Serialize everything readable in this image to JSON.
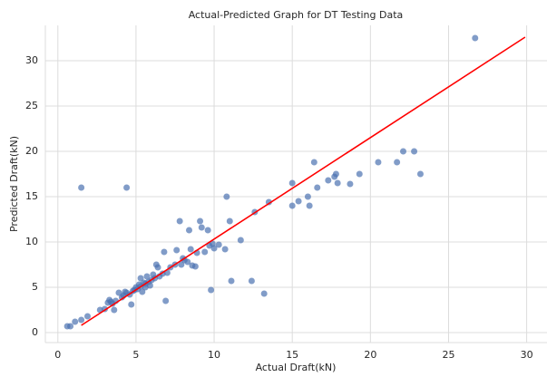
{
  "chart_data": {
    "type": "scatter",
    "title": "Actual-Predicted Graph for DT Testing Data",
    "xlabel": "Actual Draft(kN)",
    "ylabel": "Predicted Draft(kN)",
    "xlim": [
      -0.8,
      31.3
    ],
    "ylim": [
      -1.1,
      33.9
    ],
    "xticks": [
      0,
      5,
      10,
      15,
      20,
      25,
      30
    ],
    "yticks": [
      0,
      5,
      10,
      15,
      20,
      25,
      30
    ],
    "grid": true,
    "series": [
      {
        "color": "#4c72b0",
        "x": [
          0.6,
          0.8,
          1.1,
          1.5,
          1.9,
          1.5,
          4.4,
          2.7,
          3.0,
          3.2,
          3.3,
          3.5,
          3.6,
          3.7,
          3.9,
          4.1,
          4.2,
          4.4,
          4.6,
          4.7,
          4.8,
          5.0,
          5.1,
          5.2,
          5.3,
          5.4,
          5.5,
          5.6,
          5.7,
          5.8,
          5.9,
          6.0,
          6.2,
          6.3,
          6.4,
          6.5,
          6.7,
          6.8,
          6.9,
          7.0,
          7.2,
          7.5,
          7.6,
          7.8,
          7.9,
          8.0,
          8.3,
          8.4,
          8.5,
          8.6,
          8.8,
          8.9,
          9.1,
          9.2,
          9.4,
          9.6,
          9.7,
          9.8,
          9.9,
          10.0,
          10.3,
          10.7,
          10.8,
          11.0,
          11.1,
          11.7,
          12.4,
          12.6,
          13.2,
          13.5,
          15.0,
          15.0,
          15.4,
          16.0,
          16.1,
          16.4,
          16.6,
          17.3,
          17.7,
          17.8,
          17.9,
          18.7,
          19.3,
          20.5,
          21.7,
          22.1,
          22.8,
          23.2,
          26.7,
          4.9,
          5.6,
          3.4,
          6.1,
          8.1,
          5.3,
          4.3
        ],
        "values": [
          0.7,
          0.7,
          1.2,
          1.4,
          1.8,
          16.0,
          16.0,
          2.5,
          2.6,
          3.3,
          3.6,
          3.2,
          2.5,
          3.5,
          4.4,
          3.9,
          4.1,
          4.4,
          4.2,
          3.1,
          4.6,
          5.0,
          4.8,
          5.3,
          6.0,
          4.5,
          5.5,
          5.0,
          6.2,
          5.6,
          5.2,
          5.8,
          6.0,
          7.5,
          7.2,
          6.2,
          6.5,
          8.9,
          3.5,
          6.6,
          7.2,
          7.5,
          9.1,
          12.3,
          7.5,
          8.2,
          7.8,
          11.3,
          9.2,
          7.4,
          7.3,
          8.8,
          12.3,
          11.6,
          8.9,
          11.3,
          9.6,
          4.7,
          9.8,
          9.3,
          9.7,
          9.2,
          15.0,
          12.3,
          5.7,
          10.2,
          5.7,
          13.3,
          4.3,
          14.4,
          16.5,
          14.0,
          14.5,
          15.0,
          14.0,
          18.8,
          16.0,
          16.8,
          17.2,
          17.5,
          16.5,
          16.4,
          17.5,
          18.8,
          18.8,
          20.0,
          20.0,
          17.5,
          32.5,
          4.7,
          5.4,
          3.4,
          6.4,
          8.0,
          5.1,
          4.5
        ]
      }
    ],
    "fit_line": {
      "color": "#ff0000",
      "x": [
        1.5,
        29.9
      ],
      "values": [
        0.8,
        32.6
      ]
    }
  }
}
